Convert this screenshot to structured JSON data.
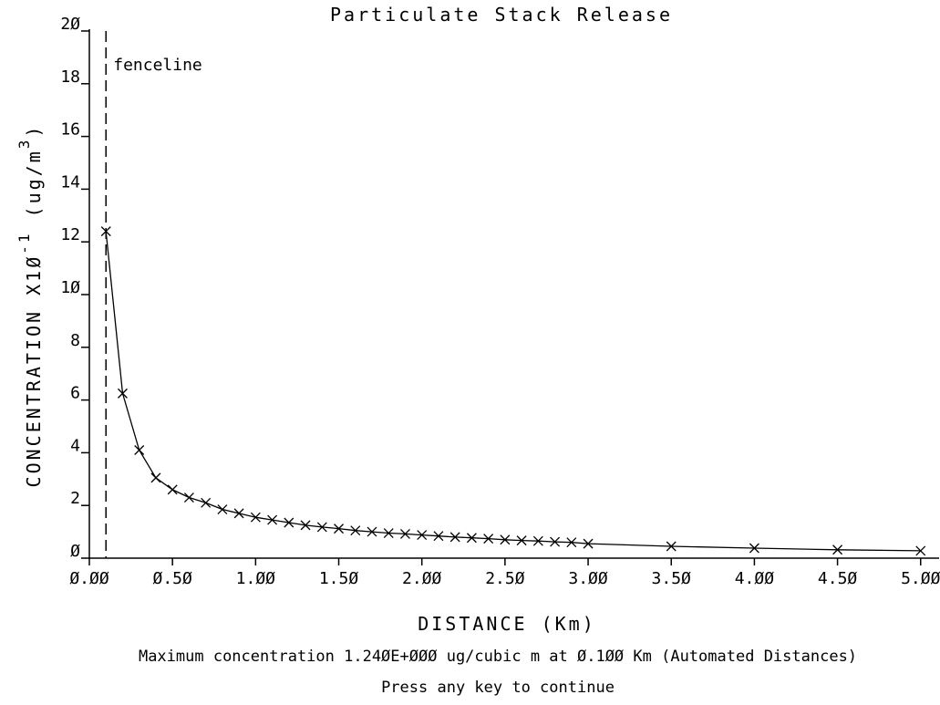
{
  "chart_data": {
    "type": "line",
    "title": "Particulate Stack Release",
    "xlabel": "DISTANCE (Km)",
    "ylabel": "CONCENTRATION X1Ø",
    "ylabel_exponent": "-1",
    "ylabel_unit": "(ug/m",
    "ylabel_unit_exponent": "3",
    "ylabel_unit_close": ")",
    "xlim": [
      0.0,
      5.1
    ],
    "ylim": [
      0,
      20
    ],
    "x_ticks": [
      0.0,
      0.5,
      1.0,
      1.5,
      2.0,
      2.5,
      3.0,
      3.5,
      4.0,
      4.5,
      5.0
    ],
    "x_tick_labels": [
      "Ø.ØØ",
      "Ø.5Ø",
      "1.ØØ",
      "1.5Ø",
      "2.ØØ",
      "2.5Ø",
      "3.ØØ",
      "3.5Ø",
      "4.ØØ",
      "4.5Ø",
      "5.ØØ"
    ],
    "y_ticks": [
      0,
      2,
      4,
      6,
      8,
      10,
      12,
      14,
      16,
      18,
      20
    ],
    "y_tick_labels": [
      "Ø",
      "2",
      "4",
      "6",
      "8",
      "1Ø",
      "12",
      "14",
      "16",
      "18",
      "2Ø"
    ],
    "grid": false,
    "fenceline": {
      "x": 0.1,
      "label": "fenceline"
    },
    "series": [
      {
        "marker": "x",
        "x": [
          0.1,
          0.2,
          0.3,
          0.4,
          0.5,
          0.6,
          0.7,
          0.8,
          0.9,
          1.0,
          1.1,
          1.2,
          1.3,
          1.4,
          1.5,
          1.6,
          1.7,
          1.8,
          1.9,
          2.0,
          2.1,
          2.2,
          2.3,
          2.4,
          2.5,
          2.6,
          2.7,
          2.8,
          2.9,
          3.0,
          3.5,
          4.0,
          4.5,
          5.0
        ],
        "y": [
          12.4,
          6.25,
          4.1,
          3.05,
          2.6,
          2.3,
          2.1,
          1.85,
          1.7,
          1.55,
          1.45,
          1.35,
          1.25,
          1.18,
          1.12,
          1.05,
          1.0,
          0.95,
          0.92,
          0.88,
          0.84,
          0.8,
          0.77,
          0.74,
          0.7,
          0.67,
          0.65,
          0.62,
          0.6,
          0.55,
          0.45,
          0.38,
          0.32,
          0.28
        ]
      }
    ]
  },
  "footer": {
    "max_concentration": "Maximum concentration 1.24ØE+ØØØ ug/cubic m at Ø.1ØØ Km (Automated Distances)",
    "prompt": "Press any key to continue"
  }
}
